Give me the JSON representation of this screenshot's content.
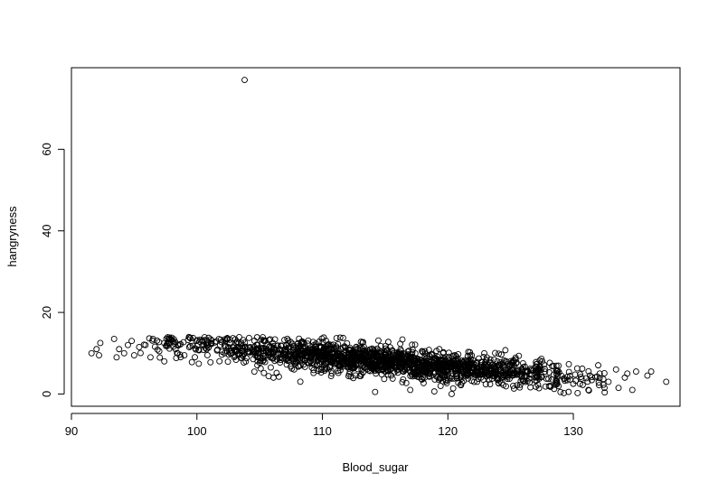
{
  "chart_data": {
    "type": "scatter",
    "title": "",
    "xlabel": "Blood_sugar",
    "ylabel": "hangryness",
    "xlim": [
      90,
      138.5
    ],
    "ylim": [
      -3,
      80
    ],
    "x_ticks": [
      90,
      100,
      110,
      120,
      130
    ],
    "y_ticks": [
      0,
      20,
      40,
      60
    ],
    "x_tick_labels": [
      "90",
      "100",
      "110",
      "120",
      "130"
    ],
    "y_tick_labels": [
      "0",
      "20",
      "40",
      "60"
    ],
    "grid": false,
    "marker": "open-circle",
    "point_color": "#000000",
    "trend": {
      "slope": -0.27,
      "intercept": 39,
      "spread": 1.8
    },
    "points": [
      {
        "x": 103.8,
        "y": 77
      },
      {
        "x": 91.6,
        "y": 10
      },
      {
        "x": 92.0,
        "y": 11
      },
      {
        "x": 92.2,
        "y": 9.5
      },
      {
        "x": 92.3,
        "y": 12.5
      },
      {
        "x": 93.4,
        "y": 13.5
      },
      {
        "x": 93.6,
        "y": 9
      },
      {
        "x": 93.8,
        "y": 11
      },
      {
        "x": 94.2,
        "y": 10
      },
      {
        "x": 94.5,
        "y": 12
      },
      {
        "x": 94.8,
        "y": 13
      },
      {
        "x": 95.0,
        "y": 9.5
      },
      {
        "x": 95.4,
        "y": 11.5
      },
      {
        "x": 95.9,
        "y": 12
      },
      {
        "x": 96.3,
        "y": 9
      },
      {
        "x": 96.5,
        "y": 13.5
      },
      {
        "x": 97.0,
        "y": 10.5
      },
      {
        "x": 97.4,
        "y": 8
      },
      {
        "x": 97.8,
        "y": 12.5
      },
      {
        "x": 98.3,
        "y": 11
      },
      {
        "x": 99.0,
        "y": 9.5
      },
      {
        "x": 106.1,
        "y": 4
      },
      {
        "x": 114.2,
        "y": 0.5
      },
      {
        "x": 117.0,
        "y": 1
      },
      {
        "x": 120.3,
        "y": 0
      },
      {
        "x": 122.9,
        "y": 10
      },
      {
        "x": 125.4,
        "y": 8.5
      },
      {
        "x": 131.2,
        "y": 1
      },
      {
        "x": 132.1,
        "y": 5
      },
      {
        "x": 132.8,
        "y": 3
      },
      {
        "x": 133.4,
        "y": 6
      },
      {
        "x": 133.6,
        "y": 1.5
      },
      {
        "x": 134.1,
        "y": 4
      },
      {
        "x": 134.3,
        "y": 5
      },
      {
        "x": 134.7,
        "y": 1
      },
      {
        "x": 135.0,
        "y": 5.5
      },
      {
        "x": 135.9,
        "y": 4.5
      },
      {
        "x": 136.2,
        "y": 5.5
      },
      {
        "x": 137.4,
        "y": 3
      }
    ]
  }
}
